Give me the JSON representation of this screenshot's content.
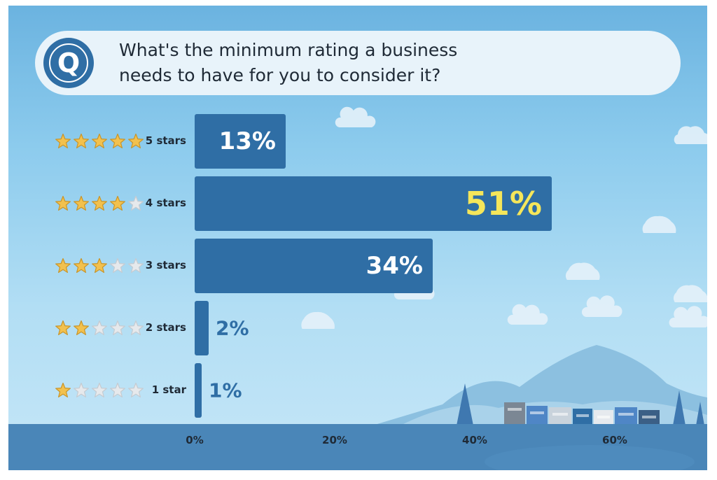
{
  "question": {
    "badge_letter": "Q",
    "text": "What's the minimum rating a business needs to have for you to consider it?"
  },
  "chart_data": {
    "type": "bar",
    "orientation": "horizontal",
    "categories": [
      "5 stars",
      "4 stars",
      "3 stars",
      "2 stars",
      "1 star"
    ],
    "star_counts": [
      5,
      4,
      3,
      2,
      1
    ],
    "values": [
      13,
      51,
      34,
      2,
      1
    ],
    "value_labels": [
      "13%",
      "51%",
      "34%",
      "2%",
      "1%"
    ],
    "highlight_index": 1,
    "xlim": [
      0,
      70
    ],
    "x_ticks": [
      0,
      20,
      40,
      60
    ],
    "x_tick_labels": [
      "0%",
      "20%",
      "40%",
      "60%"
    ],
    "grid": false,
    "legend": "none"
  },
  "colors": {
    "bar": "#2f6ea5",
    "label_inside": "#ffffff",
    "label_outside": "#2f6ea5",
    "label_highlight": "#f5e65a",
    "star_filled": "#f2c14e",
    "star_filled_stroke": "#c9952a",
    "star_empty": "#e6e9ec",
    "star_empty_stroke": "#c5cbd1"
  }
}
